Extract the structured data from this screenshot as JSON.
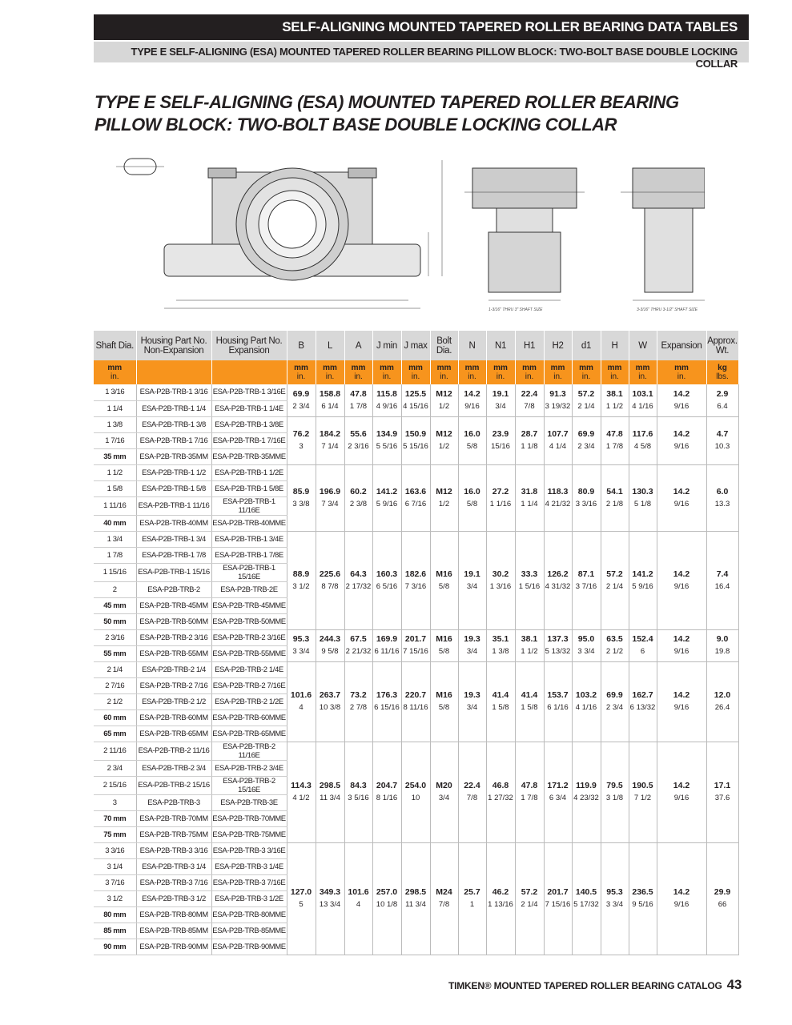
{
  "header": {
    "banner": "SELF-ALIGNING MOUNTED TAPERED ROLLER BEARING DATA TABLES",
    "subbanner": "TYPE E SELF-ALIGNING (ESA) MOUNTED TAPERED ROLLER BEARING PILLOW BLOCK: TWO-BOLT BASE  DOUBLE LOCKING COLLAR"
  },
  "title": {
    "line1": "TYPE E SELF-ALIGNING (ESA) MOUNTED TAPERED ROLLER BEARING",
    "line2": "PILLOW BLOCK: TWO-BOLT BASE DOUBLE LOCKING COLLAR"
  },
  "drawings": {
    "caption1": "1-3/16\" THRU 3\" SHAFT SIZE",
    "caption2": "3-3/16\" THRU 3-1/2\" SHAFT SIZE"
  },
  "table": {
    "columns": [
      "Shaft Dia.",
      "Housing Part No. Non-Expansion",
      "Housing Part No. Expansion",
      "B",
      "L",
      "A",
      "J min",
      "J max",
      "Bolt Dia.",
      "N",
      "N1",
      "H1",
      "H2",
      "d1",
      "H",
      "W",
      "Expansion",
      "Approx. Wt."
    ],
    "units": [
      [
        "mm",
        "in."
      ],
      [
        "",
        ""
      ],
      [
        "",
        ""
      ],
      [
        "mm",
        "in."
      ],
      [
        "mm",
        "in."
      ],
      [
        "mm",
        "in."
      ],
      [
        "mm",
        "in."
      ],
      [
        "mm",
        "in."
      ],
      [
        "mm",
        "in."
      ],
      [
        "mm",
        "in."
      ],
      [
        "mm",
        "in."
      ],
      [
        "mm",
        "in."
      ],
      [
        "mm",
        "in."
      ],
      [
        "mm",
        "in."
      ],
      [
        "mm",
        "in."
      ],
      [
        "mm",
        "in."
      ],
      [
        "mm",
        "in."
      ],
      [
        "kg",
        "lbs."
      ]
    ],
    "groups": [
      {
        "mm": [
          "69.9",
          "158.8",
          "47.8",
          "115.8",
          "125.5",
          "M12",
          "14.2",
          "19.1",
          "22.4",
          "91.3",
          "57.2",
          "38.1",
          "103.1",
          "14.2",
          "2.9"
        ],
        "in": [
          "2 3/4",
          "6 1/4",
          "1 7/8",
          "4 9/16",
          "4 15/16",
          "1/2",
          "9/16",
          "3/4",
          "7/8",
          "3 19/32",
          "2 1/4",
          "1 1/2",
          "4 1/16",
          "9/16",
          "6.4"
        ],
        "rows": [
          {
            "shaft": "1 3/16",
            "non": "ESA-P2B-TRB-1 3/16",
            "exp": "ESA-P2B-TRB-1 3/16E"
          },
          {
            "shaft": "1 1/4",
            "non": "ESA-P2B-TRB-1 1/4",
            "exp": "ESA-P2B-TRB-1 1/4E"
          }
        ]
      },
      {
        "mm": [
          "76.2",
          "184.2",
          "55.6",
          "134.9",
          "150.9",
          "M12",
          "16.0",
          "23.9",
          "28.7",
          "107.7",
          "69.9",
          "47.8",
          "117.6",
          "14.2",
          "4.7"
        ],
        "in": [
          "3",
          "7 1/4",
          "2 3/16",
          "5 5/16",
          "5 15/16",
          "1/2",
          "5/8",
          "15/16",
          "1 1/8",
          "4 1/4",
          "2 3/4",
          "1 7/8",
          "4 5/8",
          "9/16",
          "10.3"
        ],
        "rows": [
          {
            "shaft": "1 3/8",
            "non": "ESA-P2B-TRB-1 3/8",
            "exp": "ESA-P2B-TRB-1 3/8E"
          },
          {
            "shaft": "1 7/16",
            "non": "ESA-P2B-TRB-1 7/16",
            "exp": "ESA-P2B-TRB-1 7/16E"
          },
          {
            "shaft": "35 mm",
            "bold": true,
            "non": "ESA-P2B-TRB-35MM",
            "exp": "ESA-P2B-TRB-35MME"
          }
        ]
      },
      {
        "mm": [
          "85.9",
          "196.9",
          "60.2",
          "141.2",
          "163.6",
          "M12",
          "16.0",
          "27.2",
          "31.8",
          "118.3",
          "80.9",
          "54.1",
          "130.3",
          "14.2",
          "6.0"
        ],
        "in": [
          "3 3/8",
          "7 3/4",
          "2 3/8",
          "5 9/16",
          "6 7/16",
          "1/2",
          "5/8",
          "1 1/16",
          "1 1/4",
          "4 21/32",
          "3 3/16",
          "2 1/8",
          "5 1/8",
          "9/16",
          "13.3"
        ],
        "rows": [
          {
            "shaft": "1 1/2",
            "non": "ESA-P2B-TRB-1 1/2",
            "exp": "ESA-P2B-TRB-1 1/2E"
          },
          {
            "shaft": "1 5/8",
            "non": "ESA-P2B-TRB-1 5/8",
            "exp": "ESA-P2B-TRB-1 5/8E"
          },
          {
            "shaft": "1 11/16",
            "non": "ESA-P2B-TRB-1 11/16",
            "exp": "ESA-P2B-TRB-1 11/16E"
          },
          {
            "shaft": "40 mm",
            "bold": true,
            "non": "ESA-P2B-TRB-40MM",
            "exp": "ESA-P2B-TRB-40MME"
          }
        ]
      },
      {
        "mm": [
          "88.9",
          "225.6",
          "64.3",
          "160.3",
          "182.6",
          "M16",
          "19.1",
          "30.2",
          "33.3",
          "126.2",
          "87.1",
          "57.2",
          "141.2",
          "14.2",
          "7.4"
        ],
        "in": [
          "3 1/2",
          "8 7/8",
          "2 17/32",
          "6 5/16",
          "7 3/16",
          "5/8",
          "3/4",
          "1 3/16",
          "1 5/16",
          "4 31/32",
          "3 7/16",
          "2 1/4",
          "5 9/16",
          "9/16",
          "16.4"
        ],
        "rows": [
          {
            "shaft": "1 3/4",
            "non": "ESA-P2B-TRB-1 3/4",
            "exp": "ESA-P2B-TRB-1 3/4E"
          },
          {
            "shaft": "1 7/8",
            "non": "ESA-P2B-TRB-1 7/8",
            "exp": "ESA-P2B-TRB-1 7/8E"
          },
          {
            "shaft": "1 15/16",
            "non": "ESA-P2B-TRB-1 15/16",
            "exp": "ESA-P2B-TRB-1 15/16E"
          },
          {
            "shaft": "2",
            "non": "ESA-P2B-TRB-2",
            "exp": "ESA-P2B-TRB-2E"
          },
          {
            "shaft": "45 mm",
            "bold": true,
            "non": "ESA-P2B-TRB-45MM",
            "exp": "ESA-P2B-TRB-45MME"
          },
          {
            "shaft": "50 mm",
            "bold": true,
            "non": "ESA-P2B-TRB-50MM",
            "exp": "ESA-P2B-TRB-50MME"
          }
        ]
      },
      {
        "mm": [
          "95.3",
          "244.3",
          "67.5",
          "169.9",
          "201.7",
          "M16",
          "19.3",
          "35.1",
          "38.1",
          "137.3",
          "95.0",
          "63.5",
          "152.4",
          "14.2",
          "9.0"
        ],
        "in": [
          "3 3/4",
          "9 5/8",
          "2 21/32",
          "6 11/16",
          "7 15/16",
          "5/8",
          "3/4",
          "1 3/8",
          "1 1/2",
          "5 13/32",
          "3 3/4",
          "2 1/2",
          "6",
          "9/16",
          "19.8"
        ],
        "rows": [
          {
            "shaft": "2 3/16",
            "non": "ESA-P2B-TRB-2 3/16",
            "exp": "ESA-P2B-TRB-2 3/16E"
          },
          {
            "shaft": "55 mm",
            "bold": true,
            "non": "ESA-P2B-TRB-55MM",
            "exp": "ESA-P2B-TRB-55MME"
          }
        ]
      },
      {
        "mm": [
          "101.6",
          "263.7",
          "73.2",
          "176.3",
          "220.7",
          "M16",
          "19.3",
          "41.4",
          "41.4",
          "153.7",
          "103.2",
          "69.9",
          "162.7",
          "14.2",
          "12.0"
        ],
        "in": [
          "4",
          "10 3/8",
          "2 7/8",
          "6 15/16",
          "8 11/16",
          "5/8",
          "3/4",
          "1 5/8",
          "1 5/8",
          "6 1/16",
          "4 1/16",
          "2 3/4",
          "6 13/32",
          "9/16",
          "26.4"
        ],
        "rows": [
          {
            "shaft": "2 1/4",
            "non": "ESA-P2B-TRB-2 1/4",
            "exp": "ESA-P2B-TRB-2 1/4E"
          },
          {
            "shaft": "2 7/16",
            "non": "ESA-P2B-TRB-2 7/16",
            "exp": "ESA-P2B-TRB-2 7/16E"
          },
          {
            "shaft": "2 1/2",
            "non": "ESA-P2B-TRB-2 1/2",
            "exp": "ESA-P2B-TRB-2 1/2E"
          },
          {
            "shaft": "60 mm",
            "bold": true,
            "non": "ESA-P2B-TRB-60MM",
            "exp": "ESA-P2B-TRB-60MME"
          },
          {
            "shaft": "65 mm",
            "bold": true,
            "non": "ESA-P2B-TRB-65MM",
            "exp": "ESA-P2B-TRB-65MME"
          }
        ]
      },
      {
        "mm": [
          "114.3",
          "298.5",
          "84.3",
          "204.7",
          "254.0",
          "M20",
          "22.4",
          "46.8",
          "47.8",
          "171.2",
          "119.9",
          "79.5",
          "190.5",
          "14.2",
          "17.1"
        ],
        "in": [
          "4 1/2",
          "11 3/4",
          "3 5/16",
          "8 1/16",
          "10",
          "3/4",
          "7/8",
          "1 27/32",
          "1 7/8",
          "6 3/4",
          "4 23/32",
          "3 1/8",
          "7 1/2",
          "9/16",
          "37.6"
        ],
        "rows": [
          {
            "shaft": "2 11/16",
            "non": "ESA-P2B-TRB-2 11/16",
            "exp": "ESA-P2B-TRB-2 11/16E"
          },
          {
            "shaft": "2 3/4",
            "non": "ESA-P2B-TRB-2 3/4",
            "exp": "ESA-P2B-TRB-2 3/4E"
          },
          {
            "shaft": "2 15/16",
            "non": "ESA-P2B-TRB-2 15/16",
            "exp": "ESA-P2B-TRB-2 15/16E"
          },
          {
            "shaft": "3",
            "non": "ESA-P2B-TRB-3",
            "exp": "ESA-P2B-TRB-3E"
          },
          {
            "shaft": "70 mm",
            "bold": true,
            "non": "ESA-P2B-TRB-70MM",
            "exp": "ESA-P2B-TRB-70MME"
          },
          {
            "shaft": "75 mm",
            "bold": true,
            "non": "ESA-P2B-TRB-75MM",
            "exp": "ESA-P2B-TRB-75MME"
          }
        ]
      },
      {
        "mm": [
          "127.0",
          "349.3",
          "101.6",
          "257.0",
          "298.5",
          "M24",
          "25.7",
          "46.2",
          "57.2",
          "201.7",
          "140.5",
          "95.3",
          "236.5",
          "14.2",
          "29.9"
        ],
        "in": [
          "5",
          "13 3/4",
          "4",
          "10 1/8",
          "11 3/4",
          "7/8",
          "1",
          "1 13/16",
          "2 1/4",
          "7 15/16",
          "5 17/32",
          "3 3/4",
          "9 5/16",
          "9/16",
          "66"
        ],
        "rows": [
          {
            "shaft": "3 3/16",
            "non": "ESA-P2B-TRB-3 3/16",
            "exp": "ESA-P2B-TRB-3 3/16E"
          },
          {
            "shaft": "3 1/4",
            "non": "ESA-P2B-TRB-3 1/4",
            "exp": "ESA-P2B-TRB-3 1/4E"
          },
          {
            "shaft": "3 7/16",
            "non": "ESA-P2B-TRB-3 7/16",
            "exp": "ESA-P2B-TRB-3 7/16E"
          },
          {
            "shaft": "3 1/2",
            "non": "ESA-P2B-TRB-3 1/2",
            "exp": "ESA-P2B-TRB-3 1/2E"
          },
          {
            "shaft": "80 mm",
            "bold": true,
            "non": "ESA-P2B-TRB-80MM",
            "exp": "ESA-P2B-TRB-80MME"
          },
          {
            "shaft": "85 mm",
            "bold": true,
            "non": "ESA-P2B-TRB-85MM",
            "exp": "ESA-P2B-TRB-85MME"
          },
          {
            "shaft": "90 mm",
            "bold": true,
            "non": "ESA-P2B-TRB-90MM",
            "exp": "ESA-P2B-TRB-90MME"
          }
        ]
      }
    ]
  },
  "footer": {
    "catalog": "TIMKEN® MOUNTED TAPERED ROLLER BEARING CATALOG",
    "page": "43"
  },
  "colors": {
    "banner": "#231f20",
    "units_row": "#f7941d",
    "header_row": "#d8d8d8"
  }
}
